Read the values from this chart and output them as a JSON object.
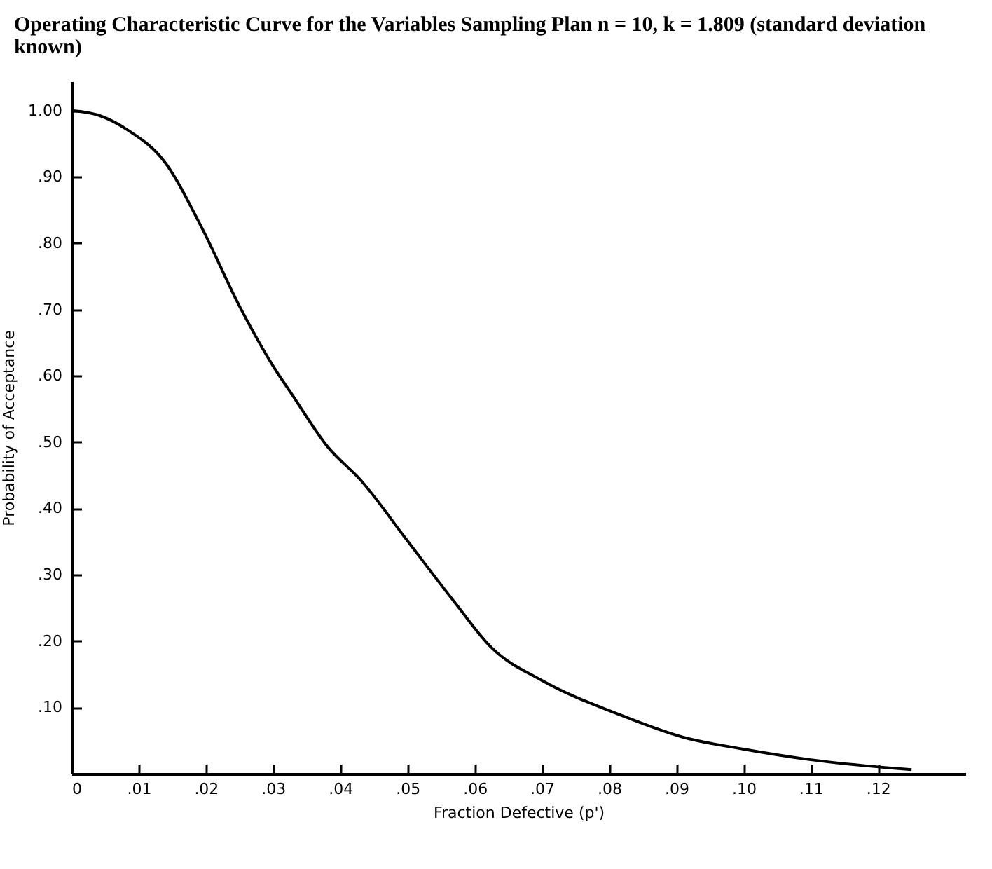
{
  "chart_data": {
    "type": "line",
    "title": "Operating Characteristic Curve for the Variables Sampling Plan n = 10, k = 1.809 (standard deviation known)",
    "xlabel": "Fraction Defective (p')",
    "ylabel": "Probability of Acceptance",
    "x": [
      0,
      0.004,
      0.0083,
      0.0139,
      0.0194,
      0.025,
      0.0306,
      0.0326,
      0.0382,
      0.043,
      0.05,
      0.0569,
      0.0625,
      0.0701,
      0.0813,
      0.091,
      0.1,
      0.11,
      0.125
    ],
    "series": [
      {
        "color": "#000000",
        "values": [
          1.0,
          0.993,
          0.971,
          0.922,
          0.823,
          0.705,
          0.605,
          0.575,
          0.492,
          0.443,
          0.351,
          0.26,
          0.19,
          0.14,
          0.09,
          0.055,
          0.037,
          0.021,
          0.006
        ]
      }
    ],
    "xlim": [
      0,
      0.133
    ],
    "ylim": [
      0,
      1.044
    ],
    "xticks": [
      0,
      {
        "value": 0.01,
        "label": ".01"
      },
      {
        "value": 0.02,
        "label": ".02"
      },
      {
        "value": 0.03,
        "label": ".03"
      },
      {
        "value": 0.04,
        "label": ".04"
      },
      {
        "value": 0.05,
        "label": ".05"
      },
      {
        "value": 0.06,
        "label": ".06"
      },
      {
        "value": 0.07,
        "label": ".07"
      },
      {
        "value": 0.08,
        "label": ".08"
      },
      {
        "value": 0.09,
        "label": ".09"
      },
      {
        "value": 0.1,
        "label": ".10"
      },
      {
        "value": 0.11,
        "label": ".11"
      },
      {
        "value": 0.12,
        "label": ".12"
      }
    ],
    "yticks": [
      {
        "value": 0.1,
        "label": ".10"
      },
      {
        "value": 0.2,
        "label": ".20"
      },
      {
        "value": 0.3,
        "label": ".30"
      },
      {
        "value": 0.4,
        "label": ".40"
      },
      {
        "value": 0.5,
        "label": ".50"
      },
      {
        "value": 0.6,
        "label": ".60"
      },
      {
        "value": 0.7,
        "label": ".70"
      },
      {
        "value": 0.8,
        "label": ".80"
      },
      {
        "value": 0.9,
        "label": ".90"
      },
      {
        "value": 1,
        "label": "1.00"
      }
    ],
    "grid": false,
    "legend": false,
    "marker": "none",
    "line_style": "solid"
  }
}
